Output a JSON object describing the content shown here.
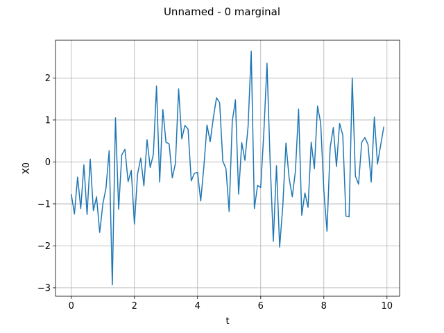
{
  "chart_data": {
    "type": "line",
    "title": "Unnamed - 0 marginal",
    "xlabel": "t",
    "ylabel": "X0",
    "xlim": [
      -0.5,
      10.4
    ],
    "ylim": [
      -3.2,
      2.9
    ],
    "xticks": [
      0,
      2,
      4,
      6,
      8,
      10
    ],
    "xtick_labels": [
      "0",
      "2",
      "4",
      "6",
      "8",
      "10"
    ],
    "yticks": [
      -3,
      -2,
      -1,
      0,
      1,
      2
    ],
    "ytick_labels": [
      "−3",
      "−2",
      "−1",
      "0",
      "1",
      "2"
    ],
    "grid": true,
    "legend": "none",
    "colors": {
      "line": "#1f77b4",
      "grid": "#b0b0b0",
      "axes": "#000000"
    },
    "series": [
      {
        "x": [
          0.0,
          0.1,
          0.2,
          0.3,
          0.4,
          0.5,
          0.6,
          0.7,
          0.8,
          0.9,
          1.0,
          1.1,
          1.2,
          1.3,
          1.4,
          1.5,
          1.6,
          1.7,
          1.8,
          1.9,
          2.0,
          2.1,
          2.2,
          2.3,
          2.4,
          2.5,
          2.6,
          2.7,
          2.8,
          2.9,
          3.0,
          3.1,
          3.2,
          3.3,
          3.4,
          3.5,
          3.6,
          3.7,
          3.8,
          3.9,
          4.0,
          4.1,
          4.2,
          4.3,
          4.4,
          4.5,
          4.6,
          4.7,
          4.8,
          4.9,
          5.0,
          5.1,
          5.2,
          5.3,
          5.4,
          5.5,
          5.6,
          5.7,
          5.8,
          5.9,
          6.0,
          6.1,
          6.2,
          6.3,
          6.4,
          6.5,
          6.6,
          6.7,
          6.8,
          6.9,
          7.0,
          7.1,
          7.2,
          7.3,
          7.4,
          7.5,
          7.6,
          7.7,
          7.8,
          7.9,
          8.0,
          8.1,
          8.2,
          8.3,
          8.4,
          8.5,
          8.6,
          8.7,
          8.8,
          8.9,
          9.0,
          9.1,
          9.2,
          9.3,
          9.4,
          9.5,
          9.6,
          9.7,
          9.8,
          9.9
        ],
        "y": [
          -0.77,
          -1.24,
          -0.36,
          -1.11,
          -0.07,
          -1.25,
          0.07,
          -1.16,
          -0.83,
          -1.68,
          -1.0,
          -0.62,
          0.27,
          -2.93,
          1.05,
          -1.13,
          0.17,
          0.3,
          -0.47,
          -0.2,
          -1.48,
          -0.29,
          0.09,
          -0.57,
          0.53,
          -0.13,
          0.18,
          1.81,
          -0.48,
          1.25,
          0.47,
          0.43,
          -0.38,
          -0.03,
          1.74,
          0.55,
          0.87,
          0.78,
          -0.45,
          -0.27,
          -0.25,
          -0.93,
          -0.11,
          0.88,
          0.48,
          1.05,
          1.53,
          1.41,
          0.02,
          -0.16,
          -1.18,
          0.97,
          1.48,
          -0.77,
          0.46,
          0.04,
          0.84,
          2.64,
          -1.11,
          -0.56,
          -0.61,
          0.71,
          2.35,
          -0.02,
          -1.89,
          -0.09,
          -2.03,
          -1.05,
          0.45,
          -0.38,
          -0.83,
          -0.22,
          1.26,
          -1.27,
          -0.74,
          -1.08,
          0.47,
          -0.16,
          1.33,
          0.93,
          -0.68,
          -1.65,
          0.34,
          0.82,
          -0.11,
          0.92,
          0.64,
          -1.29,
          -1.31,
          2.0,
          -0.34,
          -0.53,
          0.47,
          0.58,
          0.41,
          -0.48,
          1.07,
          -0.05,
          0.4,
          0.84
        ]
      }
    ]
  }
}
